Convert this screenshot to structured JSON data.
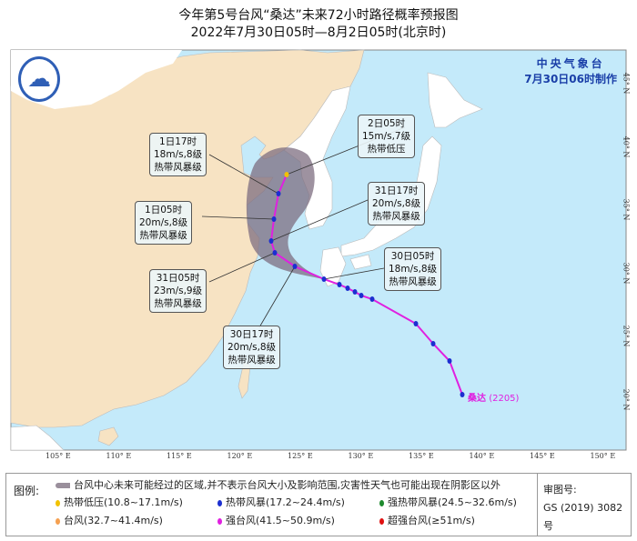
{
  "title": {
    "line1": "今年第5号台风“桑达”未来72小时路径概率预报图",
    "line2": "2022年7月30日05时—8月2日05时(北京时)"
  },
  "agency": {
    "name": "中央气象台",
    "made": "7月30日06时制作"
  },
  "storm": {
    "name": "桑达",
    "code": "(2205)"
  },
  "forecast_labels": [
    {
      "time": "2日05时",
      "wind": "15m/s,7级",
      "category": "热带低压"
    },
    {
      "time": "1日17时",
      "wind": "18m/s,8级",
      "category": "热带风暴级"
    },
    {
      "time": "1日05时",
      "wind": "20m/s,8级",
      "category": "热带风暴级"
    },
    {
      "time": "31日17时",
      "wind": "20m/s,8级",
      "category": "热带风暴级"
    },
    {
      "time": "31日05时",
      "wind": "23m/s,9级",
      "category": "热带风暴级"
    },
    {
      "time": "30日17时",
      "wind": "20m/s,8级",
      "category": "热带风暴级"
    },
    {
      "time": "30日05时",
      "wind": "18m/s,8级",
      "category": "热带风暴级"
    }
  ],
  "axes": {
    "lon": [
      "105° E",
      "110° E",
      "115° E",
      "120° E",
      "125° E",
      "130° E",
      "135° E",
      "140° E",
      "145° E",
      "150° E"
    ],
    "lat": [
      "45° N",
      "40° N",
      "35° N",
      "30° N",
      "25° N",
      "20° N"
    ]
  },
  "legend": {
    "heading": "图例:",
    "cone": "台风中心未来可能经过的区域,并不表示台风大小及影响范围,灾害性天气也可能出现在阴影区以外",
    "items": [
      {
        "label": "热带低压(10.8~17.1m/s)",
        "color": "#f2c200"
      },
      {
        "label": "热带风暴(17.2~24.4m/s)",
        "color": "#1c2fd0"
      },
      {
        "label": "强热带风暴(24.5~32.6m/s)",
        "color": "#1e8a2e"
      },
      {
        "label": "台风(32.7~41.4m/s)",
        "color": "#f5a050"
      },
      {
        "label": "强台风(41.5~50.9m/s)",
        "color": "#e020e0"
      },
      {
        "label": "超强台风(≥51m/s)",
        "color": "#e01010"
      }
    ],
    "review_label": "审图号:",
    "review_no": "GS (2019) 3082号"
  },
  "colors": {
    "sea": "#c4eafa",
    "china": "#f7e3c3",
    "other_land": "#ffffff",
    "track": "#e020e0",
    "cone": "#7d6e80"
  }
}
